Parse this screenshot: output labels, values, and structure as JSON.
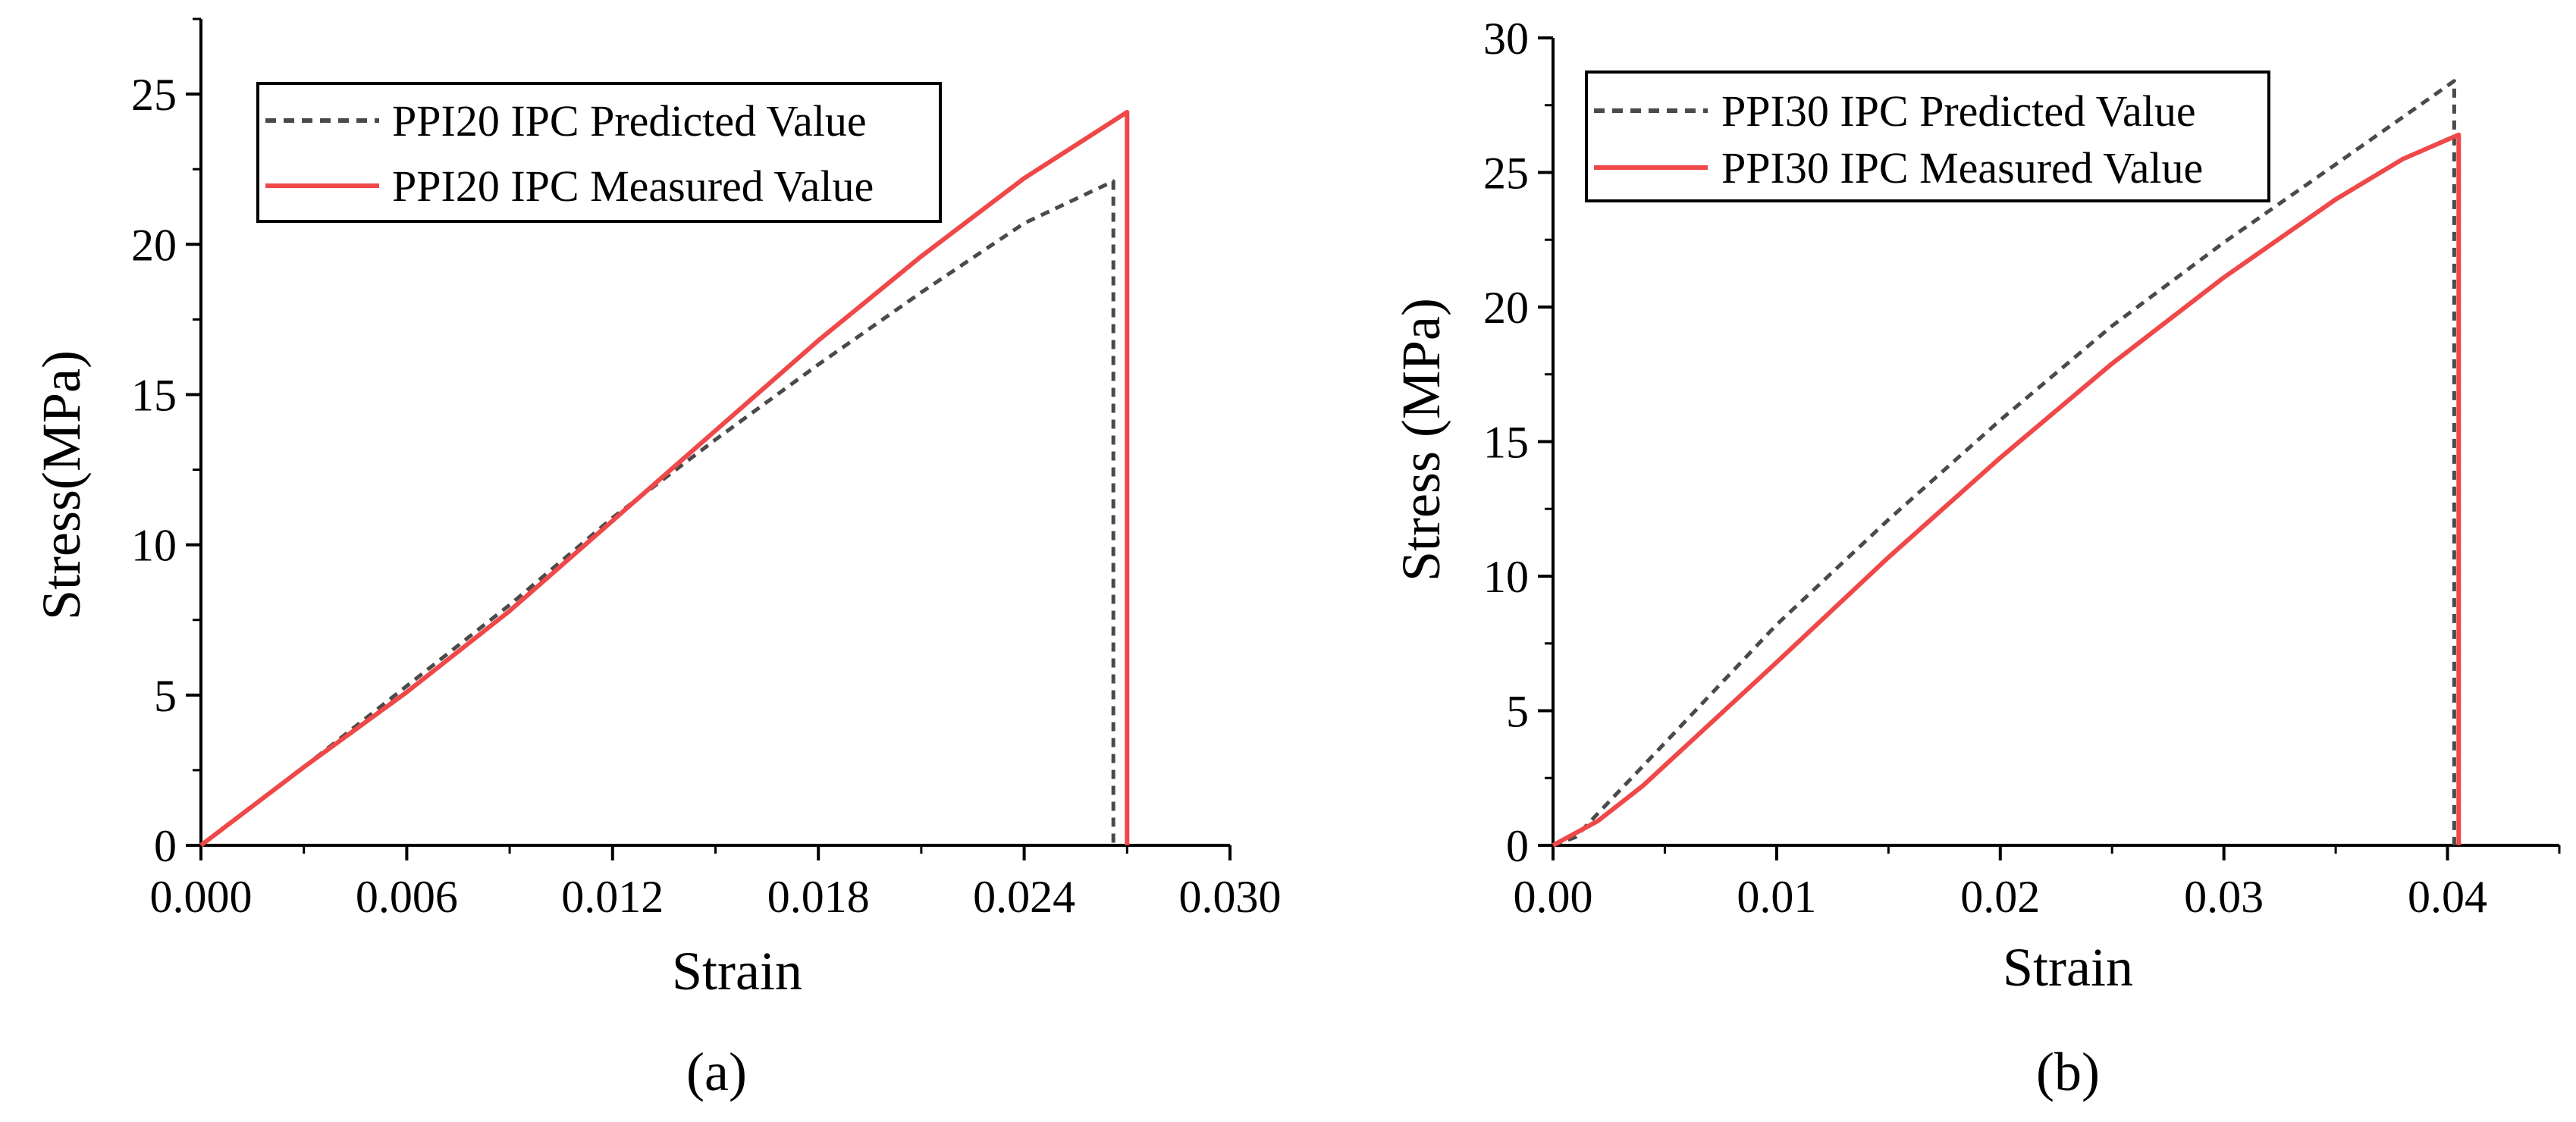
{
  "chart_data": [
    {
      "type": "line",
      "panel_label": "(a)",
      "xlabel": "Strain",
      "ylabel": "Stress(MPa)",
      "xlim": [
        0,
        0.03
      ],
      "ylim": [
        0,
        27.5
      ],
      "xticks": [
        0,
        0.006,
        0.012,
        0.018,
        0.024,
        0.03
      ],
      "xtick_labels": [
        "0.000",
        "0.006",
        "0.012",
        "0.018",
        "0.024",
        "0.030"
      ],
      "yticks": [
        0,
        5,
        10,
        15,
        20,
        25
      ],
      "ytick_labels": [
        "0",
        "5",
        "10",
        "15",
        "20",
        "25"
      ],
      "grid": false,
      "legend_position": "top-left",
      "series": [
        {
          "name": "PPI20  IPC Predicted Value",
          "style": "dashed",
          "color": "#4a4a4a",
          "points": [
            [
              0,
              0
            ],
            [
              0.003,
              2.6
            ],
            [
              0.006,
              5.3
            ],
            [
              0.009,
              8.0
            ],
            [
              0.012,
              10.9
            ],
            [
              0.015,
              13.5
            ],
            [
              0.018,
              16.0
            ],
            [
              0.021,
              18.4
            ],
            [
              0.024,
              20.7
            ],
            [
              0.0266,
              22.1
            ],
            [
              0.0266,
              0
            ]
          ]
        },
        {
          "name": "PPI20  IPC Measured Value",
          "style": "solid",
          "color": "#f04848",
          "points": [
            [
              0,
              0
            ],
            [
              0.003,
              2.6
            ],
            [
              0.006,
              5.1
            ],
            [
              0.009,
              7.8
            ],
            [
              0.012,
              10.8
            ],
            [
              0.015,
              13.8
            ],
            [
              0.018,
              16.8
            ],
            [
              0.021,
              19.6
            ],
            [
              0.024,
              22.2
            ],
            [
              0.027,
              24.4
            ],
            [
              0.027,
              0
            ]
          ]
        }
      ]
    },
    {
      "type": "line",
      "panel_label": "(b)",
      "xlabel": "Strain",
      "ylabel": "Stress (MPa)",
      "xlim": [
        0,
        0.045
      ],
      "ylim": [
        0,
        30
      ],
      "xticks": [
        0,
        0.01,
        0.02,
        0.03,
        0.04
      ],
      "xtick_labels": [
        "0.00",
        "0.01",
        "0.02",
        "0.03",
        "0.04"
      ],
      "yticks": [
        0,
        5,
        10,
        15,
        20,
        25,
        30
      ],
      "ytick_labels": [
        "0",
        "5",
        "10",
        "15",
        "20",
        "25",
        "30"
      ],
      "grid": false,
      "legend_position": "top-left",
      "series": [
        {
          "name": "PPI30  IPC Predicted Value",
          "style": "dashed",
          "color": "#4a4a4a",
          "points": [
            [
              0,
              0
            ],
            [
              0.001,
              0.3
            ],
            [
              0.005,
              3.8
            ],
            [
              0.01,
              8.2
            ],
            [
              0.015,
              12.1
            ],
            [
              0.02,
              15.8
            ],
            [
              0.025,
              19.3
            ],
            [
              0.03,
              22.4
            ],
            [
              0.035,
              25.3
            ],
            [
              0.0403,
              28.4
            ],
            [
              0.0403,
              0
            ]
          ]
        },
        {
          "name": "PPI30  IPC Measured Value",
          "style": "solid",
          "color": "#f04848",
          "points": [
            [
              0,
              0
            ],
            [
              0.002,
              0.9
            ],
            [
              0.004,
              2.2
            ],
            [
              0.007,
              4.5
            ],
            [
              0.01,
              6.8
            ],
            [
              0.015,
              10.7
            ],
            [
              0.02,
              14.4
            ],
            [
              0.025,
              17.9
            ],
            [
              0.03,
              21.1
            ],
            [
              0.035,
              24.0
            ],
            [
              0.038,
              25.5
            ],
            [
              0.0405,
              26.4
            ],
            [
              0.0405,
              0
            ]
          ]
        }
      ]
    }
  ]
}
